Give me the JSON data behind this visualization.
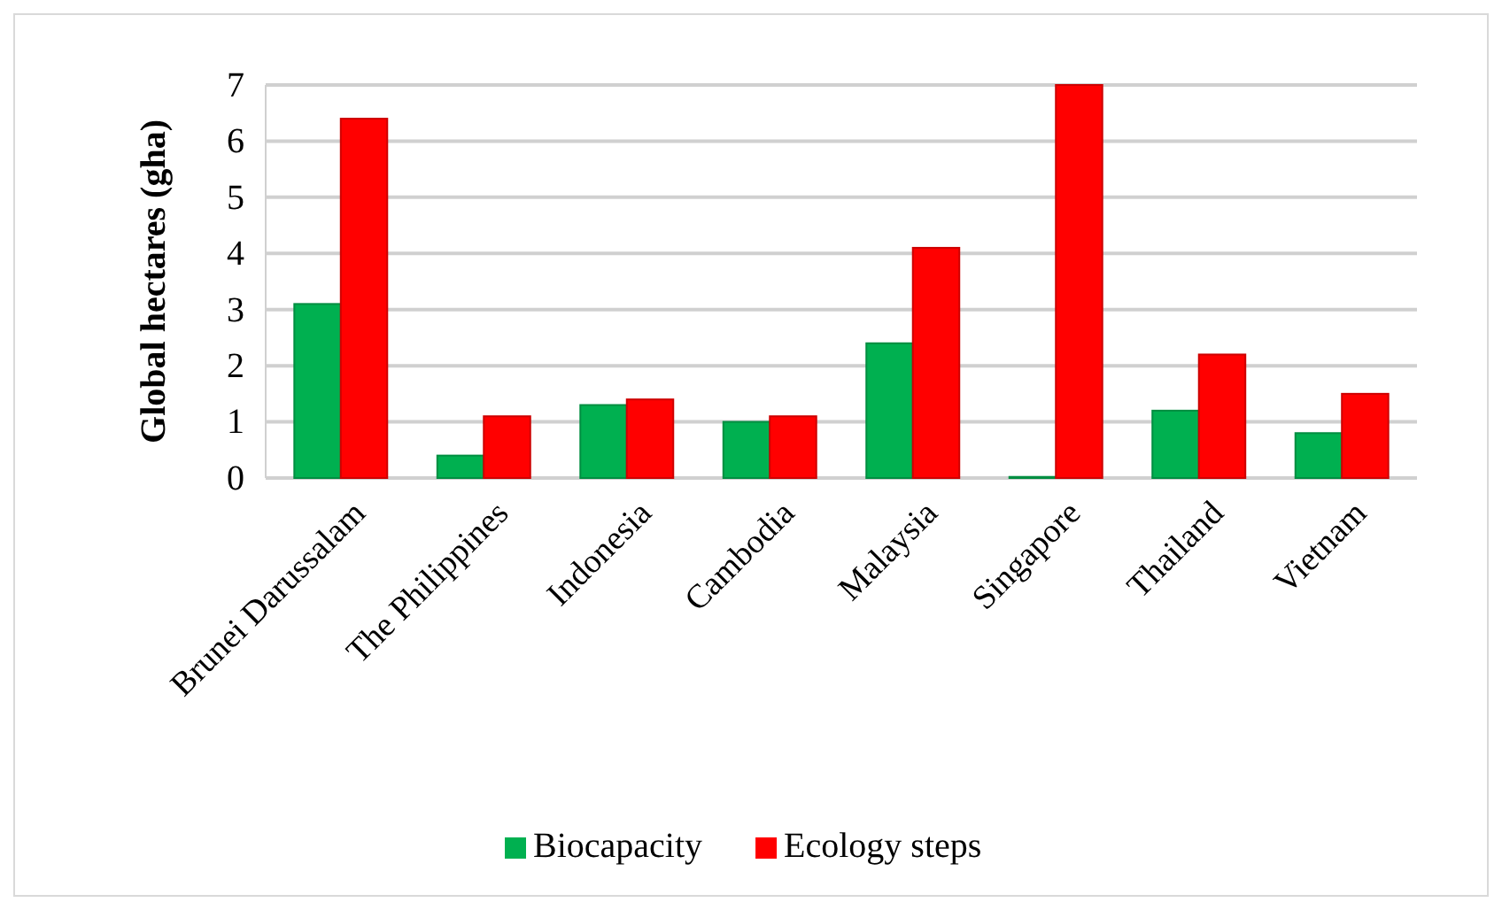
{
  "chart_data": {
    "type": "bar",
    "ylabel": "Global hectares (gha)",
    "categories": [
      "Brunei Darussalam",
      "The Philippines",
      "Indonesia",
      "Cambodia",
      "Malaysia",
      "Singapore",
      "Thailand",
      "Vietnam"
    ],
    "series": [
      {
        "name": "Biocapacity",
        "color": "#00b050",
        "values": [
          3.1,
          0.4,
          1.3,
          1.0,
          2.4,
          0.02,
          1.2,
          0.8
        ]
      },
      {
        "name": "Ecology steps",
        "color": "#ff0000",
        "values": [
          6.4,
          1.1,
          1.4,
          1.1,
          4.1,
          7.0,
          2.2,
          1.5
        ]
      }
    ],
    "ylim": [
      0,
      7
    ],
    "yticks": [
      0,
      1,
      2,
      3,
      4,
      5,
      6,
      7
    ],
    "grid": "y",
    "legend": "bottom"
  }
}
